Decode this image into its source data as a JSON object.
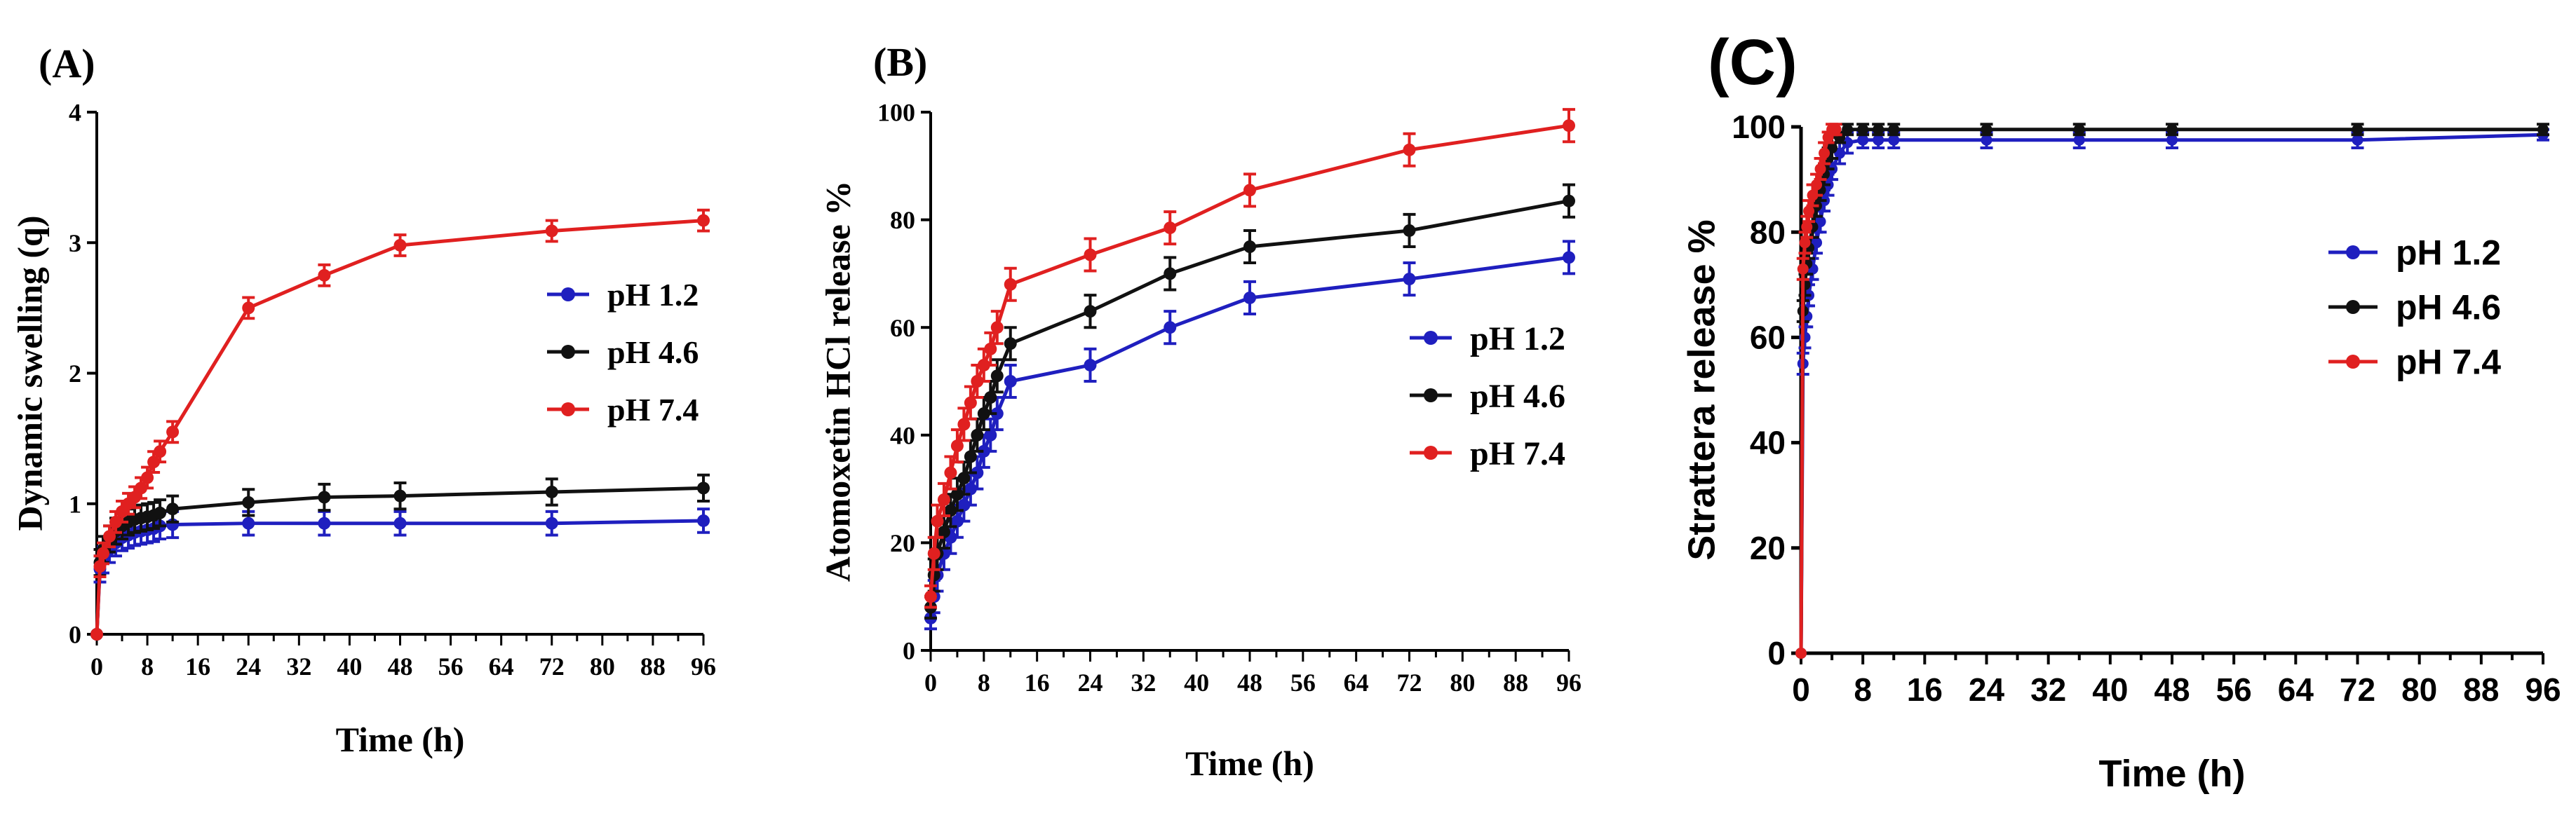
{
  "colors": {
    "pH 1.2": "#1f1fbf",
    "pH 4.6": "#111111",
    "pH 7.4": "#e02020",
    "axis": "#000000"
  },
  "chart_data": [
    {
      "id": "A",
      "panel_label": "(A)",
      "type": "line",
      "title": "",
      "xlabel": "Time (h)",
      "ylabel": "Dynamic swelling (q)",
      "xlim": [
        0,
        96
      ],
      "ylim": [
        0,
        4
      ],
      "xticks": [
        0,
        4,
        8,
        12,
        16,
        20,
        24,
        28,
        32,
        36,
        40,
        44,
        48,
        52,
        56,
        60,
        64,
        68,
        72,
        76,
        80,
        84,
        88,
        92,
        96
      ],
      "xtick_labels": [
        "0",
        "",
        "8",
        "",
        "16",
        "",
        "24",
        "",
        "32",
        "",
        "40",
        "",
        "48",
        "",
        "56",
        "",
        "64",
        "",
        "72",
        "",
        "80",
        "",
        "88",
        "",
        "96"
      ],
      "yticks": [
        0,
        1,
        2,
        3,
        4
      ],
      "ytick_labels": [
        "0",
        "1",
        "2",
        "3",
        "4"
      ],
      "legend": [
        "pH 1.2",
        "pH 4.6",
        "pH 7.4"
      ],
      "series": [
        {
          "name": "pH 1.2",
          "color_key": "pH 1.2",
          "x": [
            0,
            0.5,
            1,
            2,
            3,
            4,
            5,
            6,
            7,
            8,
            9,
            10,
            12,
            24,
            36,
            48,
            72,
            96
          ],
          "y": [
            0,
            0.5,
            0.57,
            0.65,
            0.7,
            0.74,
            0.76,
            0.78,
            0.79,
            0.8,
            0.81,
            0.83,
            0.84,
            0.85,
            0.85,
            0.85,
            0.85,
            0.87
          ],
          "err": [
            0,
            0.1,
            0.1,
            0.1,
            0.1,
            0.1,
            0.1,
            0.1,
            0.1,
            0.1,
            0.1,
            0.1,
            0.1,
            0.09,
            0.09,
            0.09,
            0.09,
            0.09
          ]
        },
        {
          "name": "pH 4.6",
          "color_key": "pH 4.6",
          "x": [
            0,
            0.5,
            1,
            2,
            3,
            4,
            5,
            6,
            7,
            8,
            9,
            10,
            12,
            24,
            36,
            48,
            72,
            96
          ],
          "y": [
            0,
            0.55,
            0.65,
            0.73,
            0.79,
            0.83,
            0.86,
            0.88,
            0.89,
            0.9,
            0.91,
            0.93,
            0.96,
            1.01,
            1.05,
            1.06,
            1.09,
            1.12
          ],
          "err": [
            0,
            0.1,
            0.1,
            0.1,
            0.1,
            0.1,
            0.1,
            0.1,
            0.1,
            0.1,
            0.1,
            0.1,
            0.1,
            0.1,
            0.1,
            0.1,
            0.1,
            0.1
          ]
        },
        {
          "name": "pH 7.4",
          "color_key": "pH 7.4",
          "x": [
            0,
            0.5,
            1,
            2,
            3,
            4,
            5,
            6,
            7,
            8,
            9,
            10,
            12,
            24,
            36,
            48,
            72,
            96
          ],
          "y": [
            0,
            0.52,
            0.62,
            0.75,
            0.86,
            0.94,
            1.0,
            1.05,
            1.12,
            1.2,
            1.32,
            1.4,
            1.55,
            2.5,
            2.75,
            2.98,
            3.09,
            3.17
          ],
          "err": [
            0,
            0.08,
            0.08,
            0.08,
            0.08,
            0.08,
            0.08,
            0.08,
            0.08,
            0.08,
            0.08,
            0.08,
            0.08,
            0.08,
            0.08,
            0.08,
            0.08,
            0.08
          ]
        }
      ]
    },
    {
      "id": "B",
      "panel_label": "(B)",
      "type": "line",
      "title": "",
      "xlabel": "Time (h)",
      "ylabel": "Atomoxetin HCl release %",
      "xlim": [
        0,
        96
      ],
      "ylim": [
        0,
        100
      ],
      "xticks": [
        0,
        4,
        8,
        12,
        16,
        20,
        24,
        28,
        32,
        36,
        40,
        44,
        48,
        52,
        56,
        60,
        64,
        68,
        72,
        76,
        80,
        84,
        88,
        92,
        96
      ],
      "xtick_labels": [
        "0",
        "",
        "8",
        "",
        "16",
        "",
        "24",
        "",
        "32",
        "",
        "40",
        "",
        "48",
        "",
        "56",
        "",
        "64",
        "",
        "72",
        "",
        "80",
        "",
        "88",
        "",
        "96"
      ],
      "yticks": [
        0,
        20,
        40,
        60,
        80,
        100
      ],
      "ytick_labels": [
        "0",
        "20",
        "40",
        "60",
        "80",
        "100"
      ],
      "legend": [
        "pH 1.2",
        "pH 4.6",
        "pH 7.4"
      ],
      "series": [
        {
          "name": "pH 1.2",
          "color_key": "pH 1.2",
          "x": [
            0,
            0.5,
            1,
            2,
            3,
            4,
            5,
            6,
            7,
            8,
            9,
            10,
            12,
            24,
            36,
            48,
            72,
            96
          ],
          "y": [
            6,
            10,
            14,
            18,
            21,
            24,
            27,
            30,
            33,
            37,
            40,
            44,
            50,
            53,
            60,
            65.5,
            69,
            73
          ],
          "err": [
            2,
            3,
            3,
            3,
            3,
            3,
            3,
            3,
            3,
            3,
            3,
            3,
            3,
            3,
            3,
            3,
            3,
            3
          ]
        },
        {
          "name": "pH 4.6",
          "color_key": "pH 4.6",
          "x": [
            0,
            0.5,
            1,
            2,
            3,
            4,
            5,
            6,
            7,
            8,
            9,
            10,
            12,
            24,
            36,
            48,
            72,
            96
          ],
          "y": [
            8,
            14,
            18,
            22,
            26,
            29,
            32,
            36,
            40,
            44,
            47,
            51,
            57,
            63,
            70,
            75,
            78,
            83.5
          ],
          "err": [
            2,
            3,
            3,
            3,
            3,
            3,
            3,
            3,
            3,
            3,
            3,
            3,
            3,
            3,
            3,
            3,
            3,
            3
          ]
        },
        {
          "name": "pH 7.4",
          "color_key": "pH 7.4",
          "x": [
            0,
            0.5,
            1,
            2,
            3,
            4,
            5,
            6,
            7,
            8,
            9,
            10,
            12,
            24,
            36,
            48,
            72,
            96
          ],
          "y": [
            10,
            18,
            24,
            28,
            33,
            38,
            42,
            46,
            50,
            53,
            56,
            60,
            68,
            73.5,
            78.5,
            85.5,
            93,
            97.5
          ],
          "err": [
            2,
            3,
            3,
            3,
            3,
            3,
            3,
            3,
            3,
            3,
            3,
            3,
            3,
            3,
            3,
            3,
            3,
            3
          ]
        }
      ]
    },
    {
      "id": "C",
      "panel_label": "(C)",
      "type": "line",
      "title": "",
      "xlabel": "Time (h)",
      "ylabel": "Strattera release %",
      "xlim": [
        0,
        96
      ],
      "ylim": [
        0,
        100
      ],
      "xticks": [
        0,
        4,
        8,
        12,
        16,
        20,
        24,
        28,
        32,
        36,
        40,
        44,
        48,
        52,
        56,
        60,
        64,
        68,
        72,
        76,
        80,
        84,
        88,
        92,
        96
      ],
      "xtick_labels": [
        "0",
        "",
        "8",
        "",
        "16",
        "",
        "24",
        "",
        "32",
        "",
        "40",
        "",
        "48",
        "",
        "56",
        "",
        "64",
        "",
        "72",
        "",
        "80",
        "",
        "88",
        "",
        "96"
      ],
      "yticks": [
        0,
        20,
        40,
        60,
        80,
        100
      ],
      "ytick_labels": [
        "0",
        "20",
        "40",
        "60",
        "80",
        "100"
      ],
      "legend": [
        "pH 1.2",
        "pH 4.6",
        "pH 7.4"
      ],
      "series": [
        {
          "name": "pH 1.2",
          "color_key": "pH 1.2",
          "x": [
            0,
            0.25,
            0.5,
            0.75,
            1,
            1.5,
            2,
            2.5,
            3,
            3.5,
            4,
            5,
            6,
            8,
            10,
            12,
            24,
            36,
            48,
            72,
            96
          ],
          "y": [
            0,
            55,
            60,
            64,
            68,
            73,
            78,
            82,
            86,
            89,
            92,
            95,
            97,
            97.5,
            97.5,
            97.5,
            97.5,
            97.5,
            97.5,
            97.5,
            98.5
          ],
          "err": [
            0,
            2,
            2,
            2,
            2,
            2,
            2,
            2,
            2,
            2,
            2,
            2,
            2,
            1.5,
            1.5,
            1.5,
            1.5,
            1.5,
            1.5,
            1.5,
            1
          ]
        },
        {
          "name": "pH 4.6",
          "color_key": "pH 4.6",
          "x": [
            0,
            0.25,
            0.5,
            0.75,
            1,
            1.5,
            2,
            2.5,
            3,
            3.5,
            4,
            5,
            6,
            8,
            10,
            12,
            24,
            36,
            48,
            72,
            96
          ],
          "y": [
            0,
            65,
            70,
            74,
            77,
            81,
            85,
            88,
            91,
            94,
            96,
            98,
            99.5,
            99.5,
            99.5,
            99.5,
            99.5,
            99.5,
            99.5,
            99.5,
            99.5
          ],
          "err": [
            0,
            2,
            2,
            2,
            2,
            2,
            2,
            2,
            2,
            2,
            2,
            1,
            1,
            1,
            1,
            1,
            1,
            1,
            1,
            1,
            1
          ]
        },
        {
          "name": "pH 7.4",
          "color_key": "pH 7.4",
          "x": [
            0,
            0.25,
            0.5,
            0.75,
            1,
            1.5,
            2,
            2.5,
            3,
            3.5,
            4,
            4.5
          ],
          "y": [
            0,
            73,
            78,
            81,
            84,
            87,
            89,
            92,
            95,
            98,
            99.5,
            99.5
          ],
          "err": [
            0,
            2,
            2,
            2,
            2,
            2,
            2,
            2,
            2,
            1,
            1,
            1
          ]
        }
      ]
    }
  ]
}
